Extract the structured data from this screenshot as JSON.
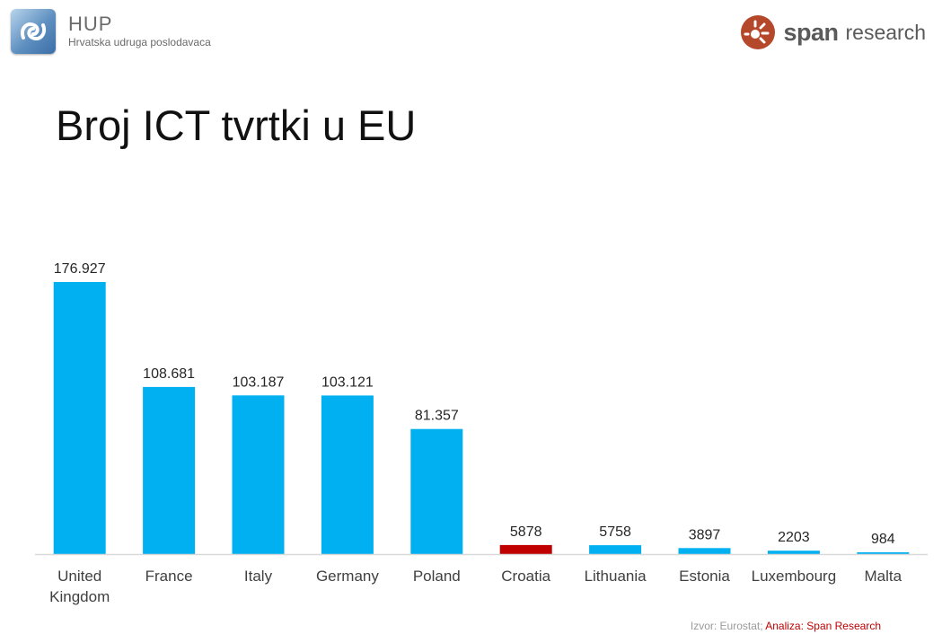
{
  "header": {
    "hup": {
      "name": "HUP",
      "subtitle": "Hrvatska udruga poslodavaca"
    },
    "span": {
      "name": "span",
      "suffix": "research",
      "brand_color": "#b5472b"
    }
  },
  "title": "Broj ICT tvrtki u EU",
  "source": {
    "prefix": "Izvor: Eurostat;",
    "analysis": "Analiza: Span Research"
  },
  "colors": {
    "bar": "#00b0f0",
    "highlight": "#c00000",
    "axis": "#d9d9d9",
    "label": "#404040"
  },
  "chart_data": {
    "type": "bar",
    "title": "Broj ICT tvrtki u EU",
    "categories": [
      [
        "United",
        "Kingdom"
      ],
      [
        "France"
      ],
      [
        "Italy"
      ],
      [
        "Germany"
      ],
      [
        "Poland"
      ],
      [
        "Croatia"
      ],
      [
        "Lithuania"
      ],
      [
        "Estonia"
      ],
      [
        "Luxembourg"
      ],
      [
        "Malta"
      ]
    ],
    "values": [
      176927,
      108681,
      103187,
      103121,
      81357,
      5878,
      5758,
      3897,
      2203,
      984
    ],
    "value_labels": [
      "176.927",
      "108.681",
      "103.187",
      "103.121",
      "81.357",
      "5878",
      "5758",
      "3897",
      "2203",
      "984"
    ],
    "highlight": "Croatia",
    "ylim": [
      0,
      176927
    ],
    "grid": false,
    "legend": "none",
    "xlabel": "",
    "ylabel": ""
  }
}
